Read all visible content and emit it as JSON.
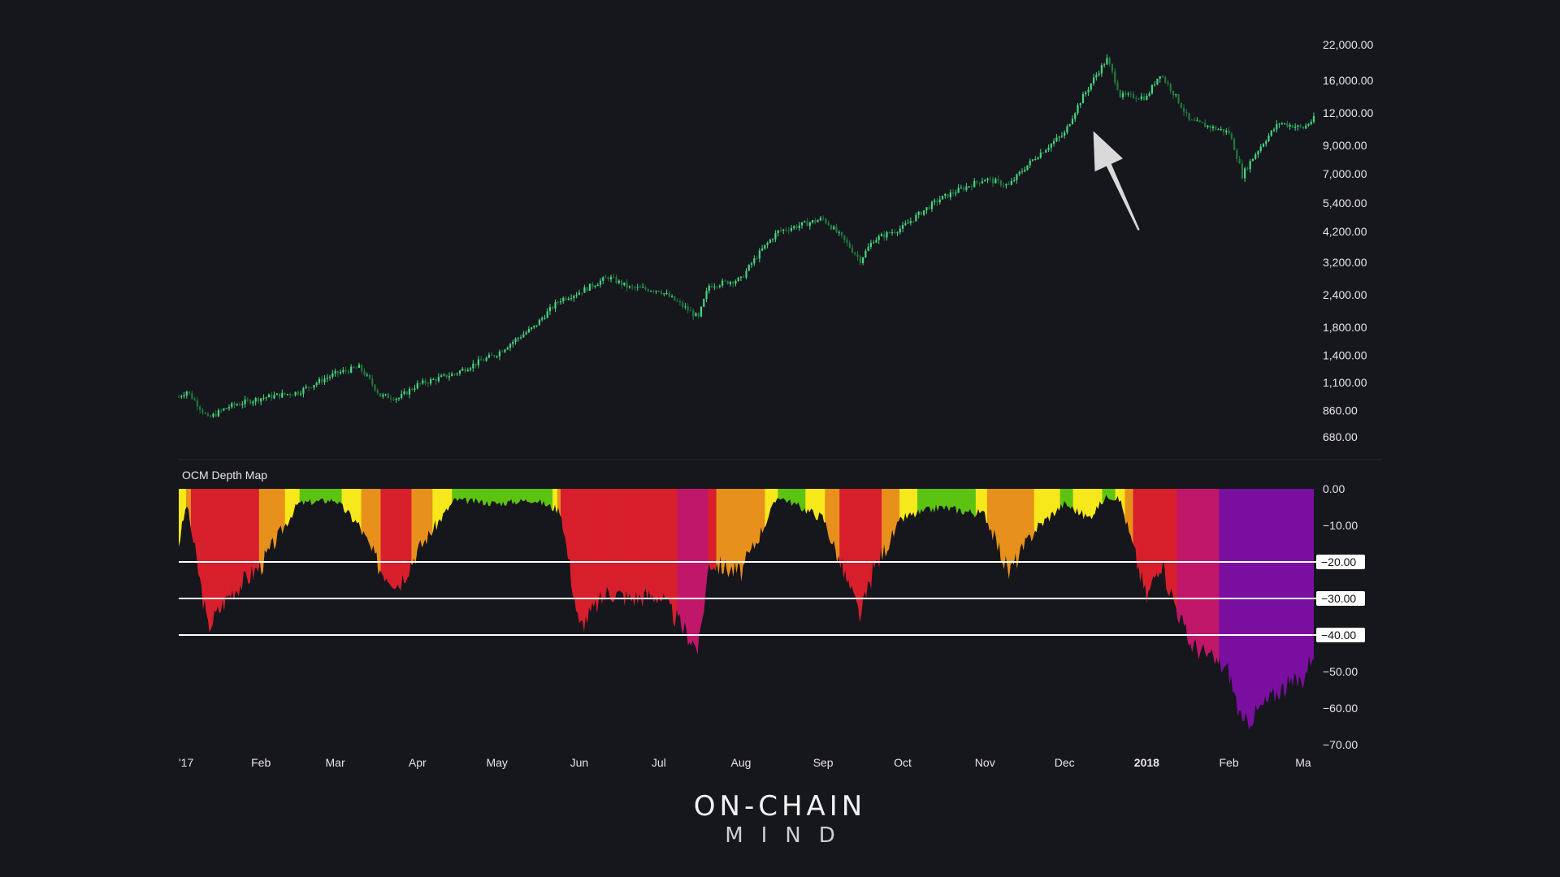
{
  "chart_data": [
    {
      "type": "candlestick",
      "y_scale": "log",
      "ylim": [
        680,
        22000
      ],
      "y_ticks": [
        "22,000.00",
        "16,000.00",
        "12,000.00",
        "9,000.00",
        "7,000.00",
        "5,400.00",
        "4,200.00",
        "3,200.00",
        "2,400.00",
        "1,800.00",
        "1,400.00",
        "1,100.00",
        "860.00",
        "680.00"
      ],
      "y_tick_values": [
        22000,
        16000,
        12000,
        9000,
        7000,
        5400,
        4200,
        3200,
        2400,
        1800,
        1400,
        1100,
        860,
        680
      ],
      "series": [
        {
          "dates": [
            "2017-01-01",
            "2017-01-04",
            "2017-01-12",
            "2017-01-20",
            "2017-02-01",
            "2017-02-15",
            "2017-03-01",
            "2017-03-10",
            "2017-03-18",
            "2017-03-25",
            "2017-04-01",
            "2017-04-15",
            "2017-05-01",
            "2017-05-15",
            "2017-05-25",
            "2017-06-01",
            "2017-06-12",
            "2017-06-20",
            "2017-07-01",
            "2017-07-16",
            "2017-07-20",
            "2017-08-01",
            "2017-08-15",
            "2017-09-01",
            "2017-09-15",
            "2017-09-20",
            "2017-10-01",
            "2017-10-15",
            "2017-11-01",
            "2017-11-10",
            "2017-11-20",
            "2017-12-01",
            "2017-12-10",
            "2017-12-17",
            "2017-12-22",
            "2018-01-01",
            "2018-01-06",
            "2018-01-17",
            "2018-02-01",
            "2018-02-06",
            "2018-02-20",
            "2018-03-01",
            "2018-03-05"
          ],
          "close": [
            970,
            1020,
            800,
            890,
            960,
            1010,
            1190,
            1260,
            980,
            960,
            1080,
            1190,
            1420,
            1800,
            2300,
            2450,
            2800,
            2550,
            2500,
            1950,
            2600,
            2750,
            4200,
            4700,
            3250,
            3900,
            4350,
            5600,
            6700,
            6300,
            8100,
            10000,
            15000,
            19300,
            14000,
            13800,
            17000,
            11200,
            10100,
            6900,
            11000,
            10500,
            11400
          ],
          "color": "#3ecf7a"
        }
      ],
      "annotations": [
        "arrow pointing to Dec 2017 rally"
      ]
    },
    {
      "type": "area",
      "title": "OCM Depth Map",
      "ylim": [
        -70,
        0
      ],
      "y_ticks": [
        "0.00",
        "−10.00",
        "−20.00",
        "−30.00",
        "−40.00",
        "−50.00",
        "−60.00",
        "−70.00"
      ],
      "y_tick_values": [
        0,
        -10,
        -20,
        -30,
        -40,
        -50,
        -60,
        -70
      ],
      "levels": [
        -20,
        -30,
        -40
      ],
      "level_labels": [
        "−20.00",
        "−30.00",
        "−40.00"
      ],
      "series": [
        {
          "dates": [
            "2017-01-01",
            "2017-01-04",
            "2017-01-12",
            "2017-01-20",
            "2017-02-01",
            "2017-02-15",
            "2017-03-01",
            "2017-03-10",
            "2017-03-18",
            "2017-03-25",
            "2017-04-01",
            "2017-04-15",
            "2017-05-01",
            "2017-05-15",
            "2017-05-25",
            "2017-06-01",
            "2017-06-12",
            "2017-06-20",
            "2017-07-01",
            "2017-07-16",
            "2017-07-20",
            "2017-08-01",
            "2017-08-15",
            "2017-09-01",
            "2017-09-15",
            "2017-09-20",
            "2017-10-01",
            "2017-10-15",
            "2017-11-01",
            "2017-11-10",
            "2017-11-20",
            "2017-12-01",
            "2017-12-10",
            "2017-12-17",
            "2017-12-22",
            "2018-01-01",
            "2018-01-06",
            "2018-01-17",
            "2018-02-01",
            "2018-02-06",
            "2018-02-20",
            "2018-03-01",
            "2018-03-05"
          ],
          "values": [
            -15,
            -4,
            -38,
            -29,
            -21,
            -4,
            -3,
            -10,
            -22,
            -26,
            -17,
            -3,
            -4,
            -3,
            -6,
            -38,
            -28,
            -30,
            -29,
            -44,
            -20,
            -23,
            -2,
            -8,
            -35,
            -22,
            -8,
            -5,
            -7,
            -23,
            -11,
            -4,
            -8,
            -2,
            -3,
            -30,
            -20,
            -42,
            -50,
            -65,
            -55,
            -52,
            -44
          ]
        }
      ],
      "colors": {
        "green_dark": "#2a8a10",
        "green": "#5cc411",
        "yellow": "#f6e81a",
        "orange": "#e8901c",
        "red": "#d81f2c",
        "magenta": "#c0176a",
        "purple": "#7a0fa0"
      }
    }
  ],
  "x_axis": {
    "labels": [
      "'17",
      "Feb",
      "Mar",
      "Apr",
      "May",
      "Jun",
      "Jul",
      "Aug",
      "Sep",
      "Oct",
      "Nov",
      "Dec",
      "2018",
      "Feb",
      "Ma"
    ],
    "dates": [
      "2017-01-01",
      "2017-02-01",
      "2017-03-01",
      "2017-04-01",
      "2017-05-01",
      "2017-06-01",
      "2017-07-01",
      "2017-08-01",
      "2017-09-01",
      "2017-10-01",
      "2017-11-01",
      "2017-12-01",
      "2018-01-01",
      "2018-02-01",
      "2018-03-01"
    ],
    "bold": [
      "2018"
    ],
    "range": [
      "2017-01-01",
      "2018-03-05"
    ]
  },
  "brand": {
    "line1": "ON-CHAIN",
    "line2": "MIND"
  },
  "colors": {
    "background": "#16161d",
    "candle": "#3ecf7a",
    "level_line": "#ffffff",
    "arrow": "#d9d9d9"
  }
}
